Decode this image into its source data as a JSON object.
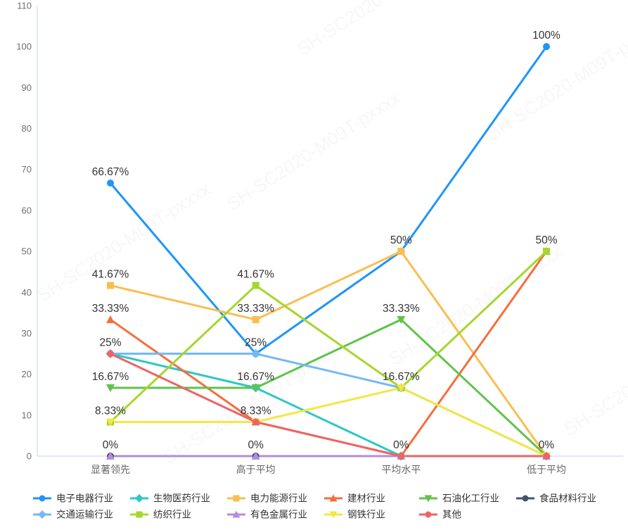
{
  "watermark": "SH-SC2020-M09T-pxxxx",
  "chart_data": {
    "type": "line",
    "title": "",
    "categories": [
      "显著领先",
      "高于平均",
      "平均水平",
      "低于平均"
    ],
    "series": [
      {
        "name": "电子电器行业",
        "color": "#1e95fa",
        "marker": "circle",
        "values": [
          66.67,
          25,
          50,
          100
        ]
      },
      {
        "name": "生物医药行业",
        "color": "#2dc8c5",
        "marker": "diamond",
        "values": [
          25,
          16.67,
          0,
          0
        ]
      },
      {
        "name": "电力能源行业",
        "color": "#fabe50",
        "marker": "square",
        "values": [
          41.67,
          33.33,
          50,
          0
        ]
      },
      {
        "name": "建材行业",
        "color": "#f56e3c",
        "marker": "triangle-up",
        "values": [
          33.33,
          8.33,
          0,
          50
        ]
      },
      {
        "name": "石油化工行业",
        "color": "#5fc34b",
        "marker": "triangle-down",
        "values": [
          16.67,
          16.67,
          33.33,
          0
        ]
      },
      {
        "name": "食品材料行业",
        "color": "#42556b",
        "marker": "circle",
        "values": [
          0,
          0,
          0,
          0
        ]
      },
      {
        "name": "交通运输行业",
        "color": "#73b9f5",
        "marker": "diamond",
        "values": [
          25,
          25,
          16.67,
          0
        ]
      },
      {
        "name": "纺织行业",
        "color": "#a5d72d",
        "marker": "square",
        "values": [
          8.33,
          41.67,
          16.67,
          50
        ]
      },
      {
        "name": "有色金属行业",
        "color": "#b48ce1",
        "marker": "triangle-up",
        "values": [
          0,
          0,
          0,
          0
        ]
      },
      {
        "name": "钢铁行业",
        "color": "#f5e646",
        "marker": "triangle-down",
        "values": [
          8.33,
          8.33,
          16.67,
          0
        ]
      },
      {
        "name": "其他",
        "color": "#ee6464",
        "marker": "circle",
        "values": [
          25,
          8.33,
          0,
          0
        ]
      }
    ],
    "ylim": [
      0,
      110
    ],
    "y_ticks": [
      0,
      10,
      20,
      30,
      40,
      50,
      60,
      70,
      80,
      90,
      100,
      110
    ],
    "value_label_suffix": "%",
    "grid": false,
    "legend_position": "bottom",
    "colors": {
      "axis": "#c9d3ee",
      "tick_label": "#6e6e6e",
      "category_label": "#666666",
      "value_label": "#333333",
      "legend_label": "#333333"
    }
  }
}
